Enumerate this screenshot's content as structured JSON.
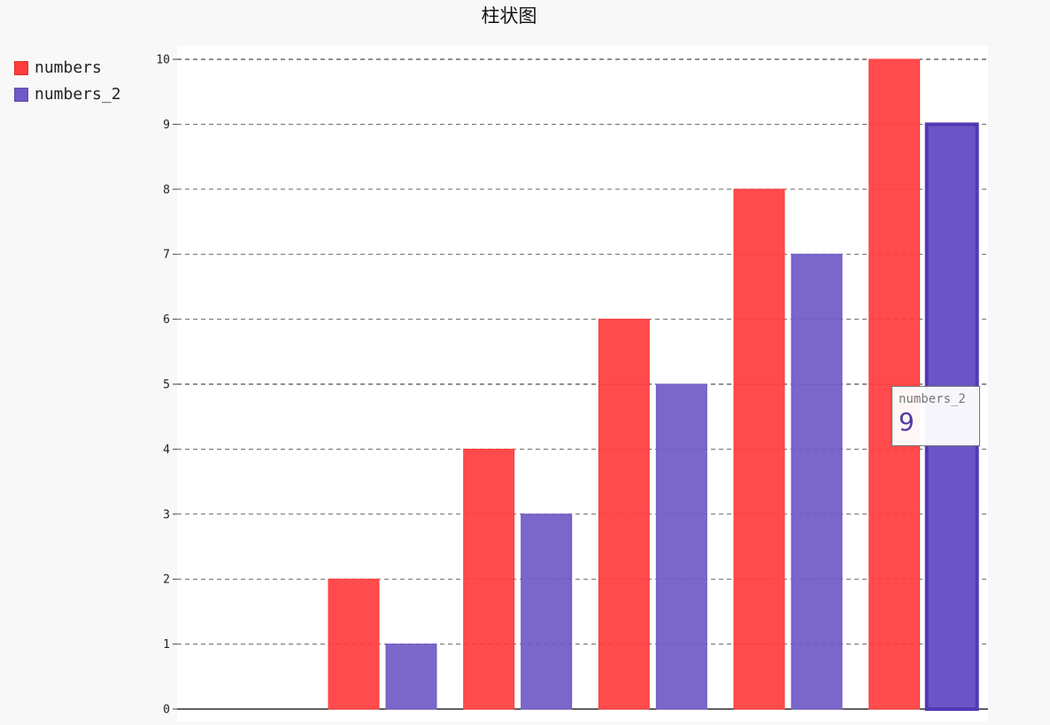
{
  "chart_data": {
    "type": "bar",
    "title": "柱状图",
    "categories": [
      "",
      "",
      "",
      "",
      "",
      ""
    ],
    "series": [
      {
        "name": "numbers",
        "values": [
          0,
          2,
          4,
          6,
          8,
          10
        ],
        "color": "#ff3c3c"
      },
      {
        "name": "numbers_2",
        "values": [
          0,
          1,
          3,
          5,
          7,
          9
        ],
        "color": "#7059c6"
      }
    ],
    "xlabel": "",
    "ylabel": "",
    "ylim": [
      0,
      10
    ],
    "yticks": [
      "0",
      "1",
      "2",
      "3",
      "4",
      "5",
      "6",
      "7",
      "8",
      "9",
      "10"
    ],
    "grid": true,
    "legend": "top-left"
  },
  "tooltip": {
    "series": "numbers_2",
    "value": "9"
  }
}
